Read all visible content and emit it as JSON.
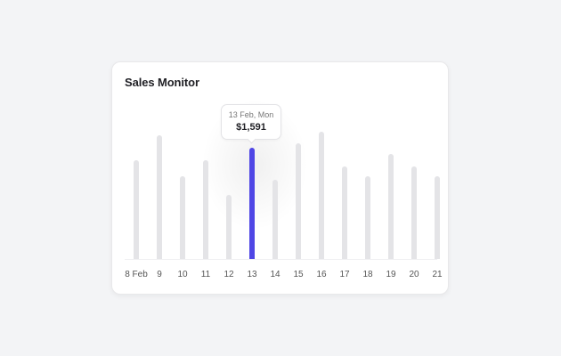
{
  "card": {
    "title": "Sales Monitor"
  },
  "tooltip": {
    "date": "13 Feb, Mon",
    "value": "$1,591"
  },
  "colors": {
    "active_bar": "#4f46e5",
    "inactive_bar": "#e4e4e7",
    "background": "#f3f4f6"
  },
  "chart_data": {
    "type": "bar",
    "title": "Sales Monitor",
    "categories": [
      "8 Feb",
      "9",
      "10",
      "11",
      "12",
      "13",
      "14",
      "15",
      "16",
      "17",
      "18",
      "19",
      "20",
      "21"
    ],
    "values": [
      1413,
      1769,
      1184,
      1413,
      917,
      1591,
      1133,
      1655,
      1820,
      1324,
      1184,
      1502,
      1324,
      1184
    ],
    "highlighted_index": 5,
    "highlight_label": "13 Feb, Mon",
    "highlight_value": "$1,591",
    "xlabel": "",
    "ylabel": "",
    "grid": false,
    "legend": null
  }
}
